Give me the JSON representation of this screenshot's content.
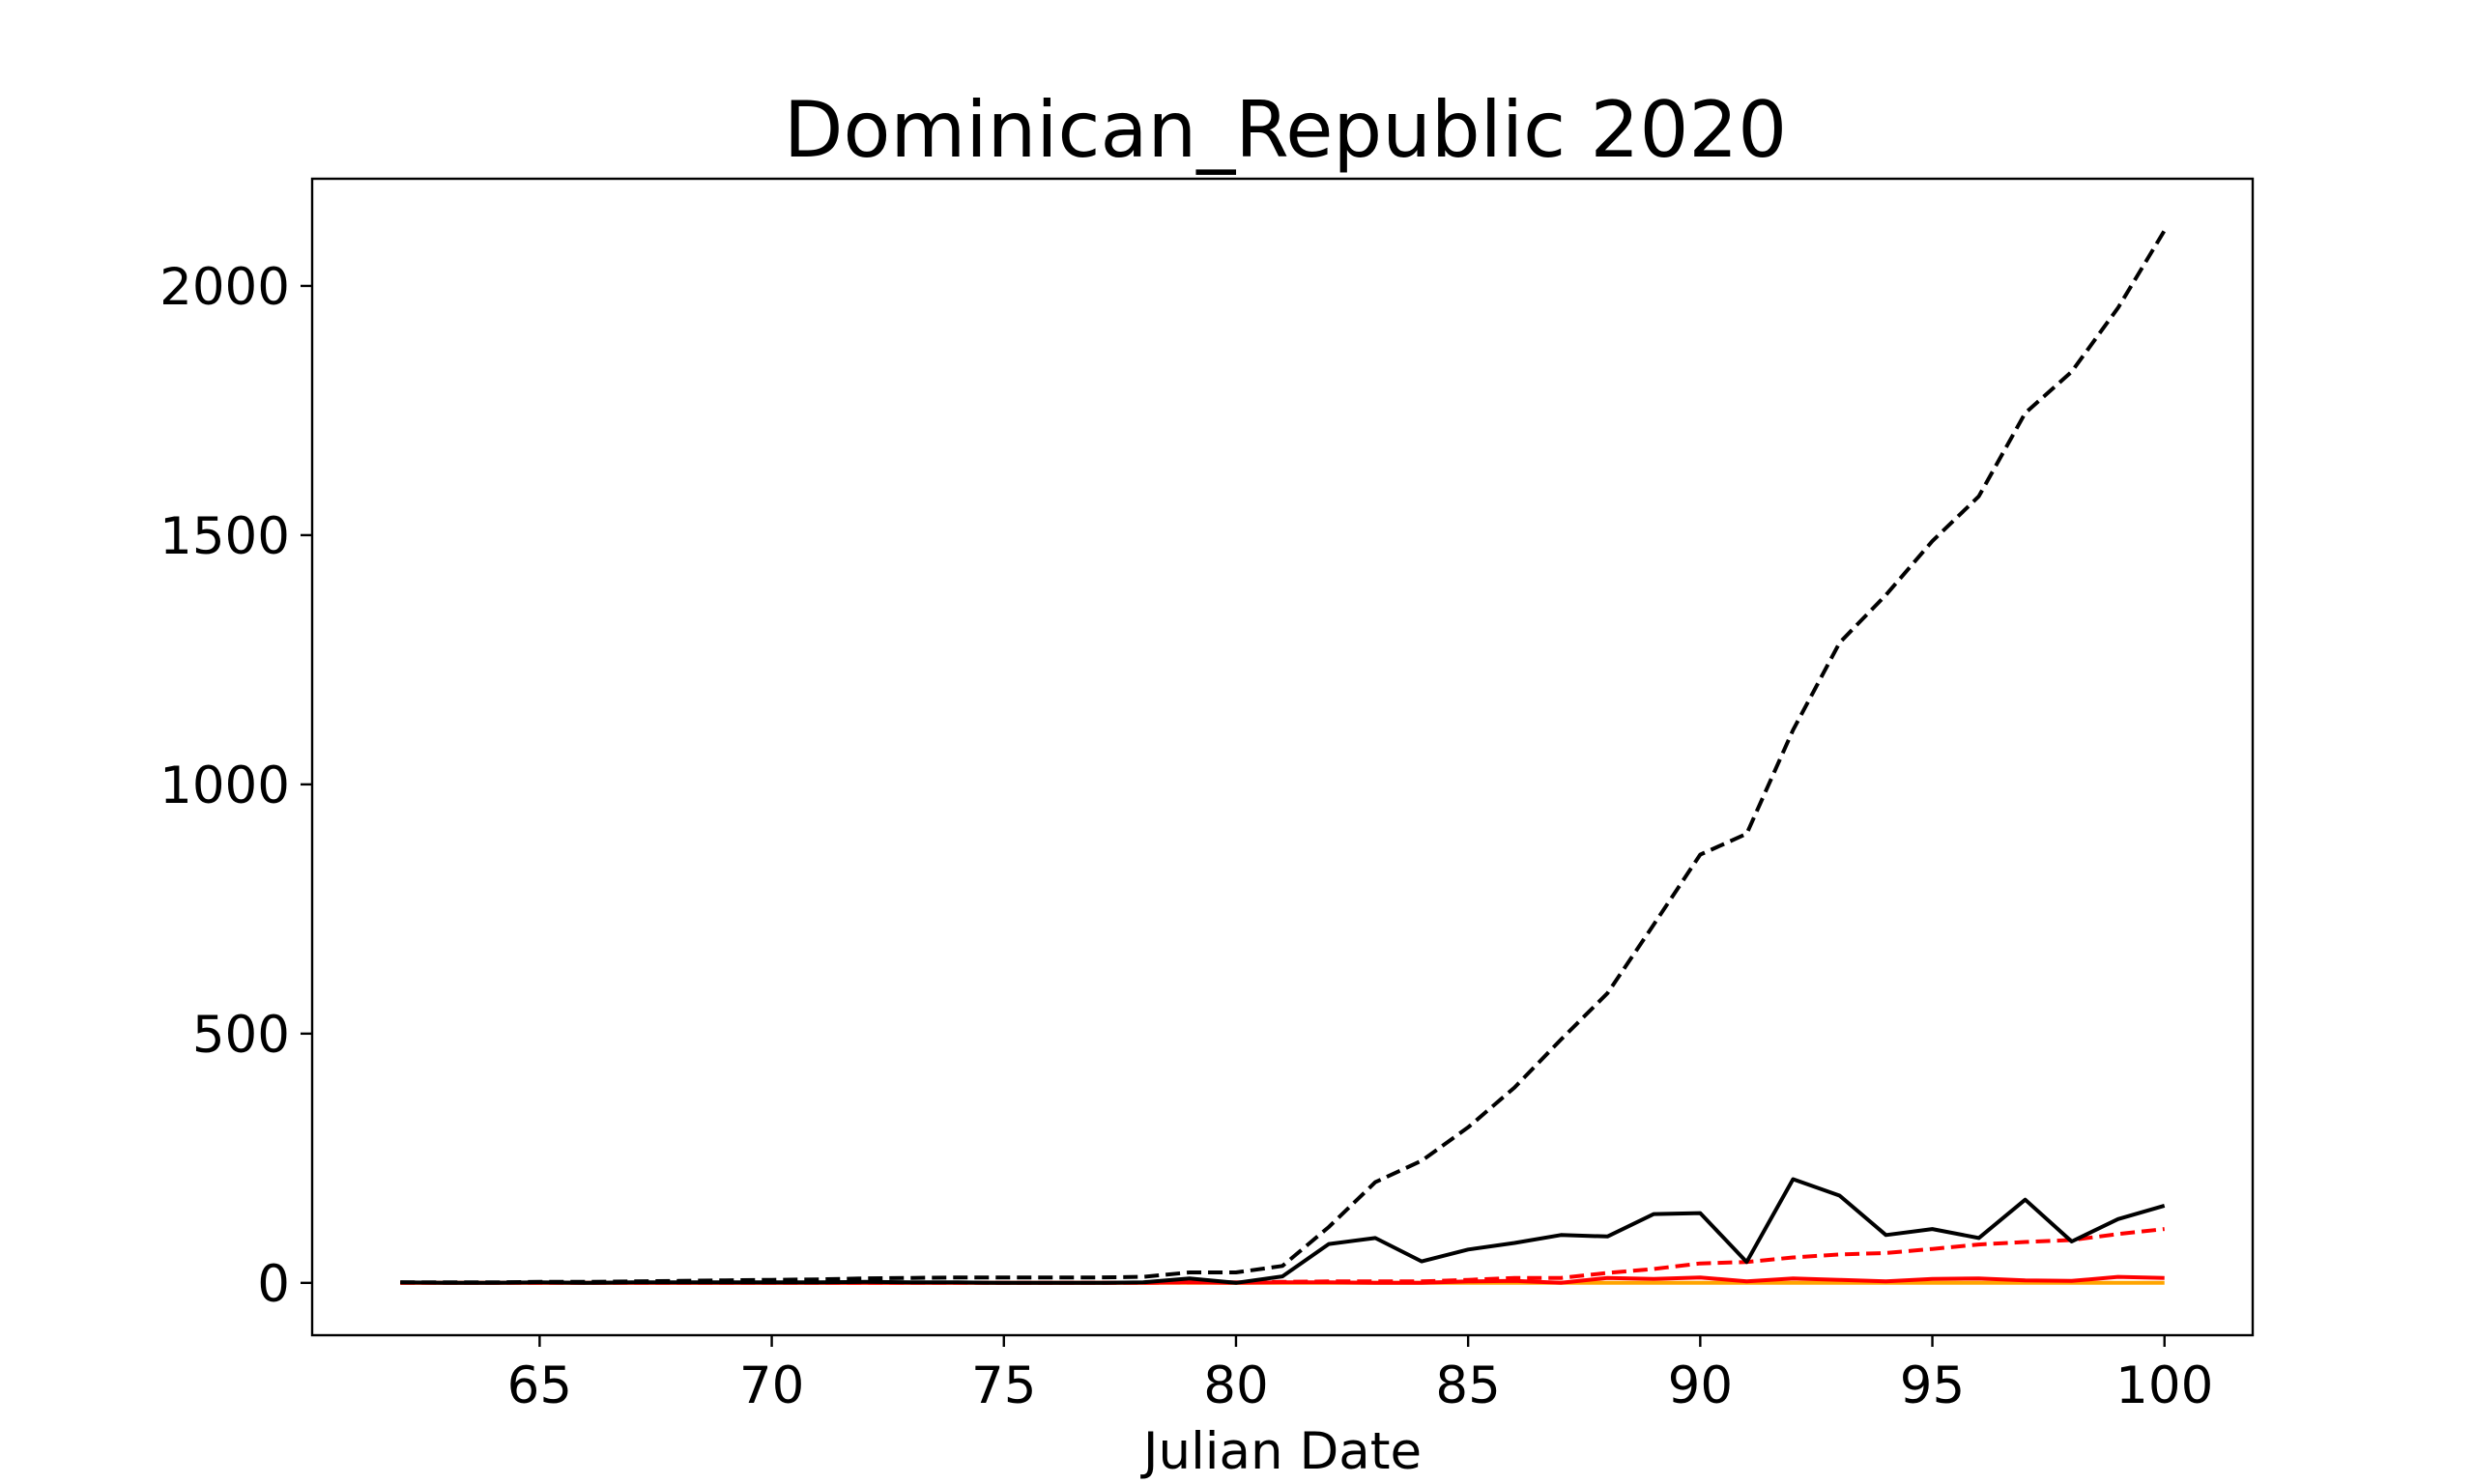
{
  "chart_data": {
    "type": "line",
    "title": "Dominican_Republic 2020",
    "xlabel": "Julian Date",
    "ylabel": "",
    "xlim": [
      60.1,
      101.9
    ],
    "ylim": [
      -105,
      2215
    ],
    "xticks": [
      65,
      70,
      75,
      80,
      85,
      90,
      95,
      100
    ],
    "yticks": [
      0,
      500,
      1000,
      1500,
      2000
    ],
    "grid": false,
    "legend": "none",
    "x": [
      62,
      63,
      64,
      65,
      66,
      67,
      68,
      69,
      70,
      71,
      72,
      73,
      74,
      75,
      76,
      77,
      78,
      79,
      80,
      81,
      82,
      83,
      84,
      85,
      86,
      87,
      88,
      89,
      90,
      91,
      92,
      93,
      94,
      95,
      96,
      97,
      98,
      99,
      100
    ],
    "series": [
      {
        "color": "#000000",
        "style": "dashed",
        "values": [
          1,
          1,
          1,
          2,
          2,
          3,
          4,
          5,
          6,
          7,
          9,
          10,
          11,
          11,
          11,
          11,
          12,
          21,
          21,
          34,
          112,
          202,
          245,
          312,
          392,
          488,
          581,
          719,
          859,
          901,
          1109,
          1284,
          1380,
          1488,
          1578,
          1745,
          1828,
          1956,
          2111
        ]
      },
      {
        "color": "#000000",
        "style": "solid",
        "values": [
          1,
          0,
          0,
          1,
          0,
          1,
          1,
          1,
          1,
          1,
          2,
          1,
          1,
          0,
          0,
          0,
          1,
          9,
          0,
          13,
          78,
          90,
          43,
          67,
          80,
          96,
          93,
          138,
          140,
          42,
          208,
          175,
          96,
          108,
          90,
          167,
          83,
          128,
          155
        ]
      },
      {
        "color": "#ff0000",
        "style": "dashed",
        "values": [
          0,
          0,
          0,
          0,
          0,
          0,
          0,
          0,
          0,
          0,
          0,
          0,
          0,
          0,
          0,
          0,
          0,
          1,
          1,
          2,
          3,
          3,
          3,
          6,
          10,
          10,
          20,
          28,
          39,
          42,
          51,
          57,
          60,
          68,
          77,
          82,
          86,
          98,
          108
        ]
      },
      {
        "color": "#ff0000",
        "style": "solid",
        "values": [
          0,
          0,
          0,
          0,
          0,
          0,
          0,
          0,
          0,
          0,
          0,
          0,
          0,
          0,
          0,
          0,
          0,
          1,
          0,
          1,
          1,
          0,
          0,
          3,
          4,
          0,
          10,
          8,
          11,
          3,
          9,
          6,
          3,
          8,
          9,
          5,
          4,
          12,
          10
        ]
      },
      {
        "color": "#ffa500",
        "style": "solid",
        "values": [
          0,
          0,
          0,
          0,
          0,
          0,
          0,
          0,
          0,
          0,
          0,
          0,
          0,
          0,
          0,
          0,
          0,
          0,
          0,
          0,
          0,
          0,
          0,
          0,
          0,
          0,
          0,
          0,
          0,
          0,
          0,
          0,
          0,
          0,
          0,
          0,
          0,
          0,
          0
        ]
      }
    ]
  }
}
